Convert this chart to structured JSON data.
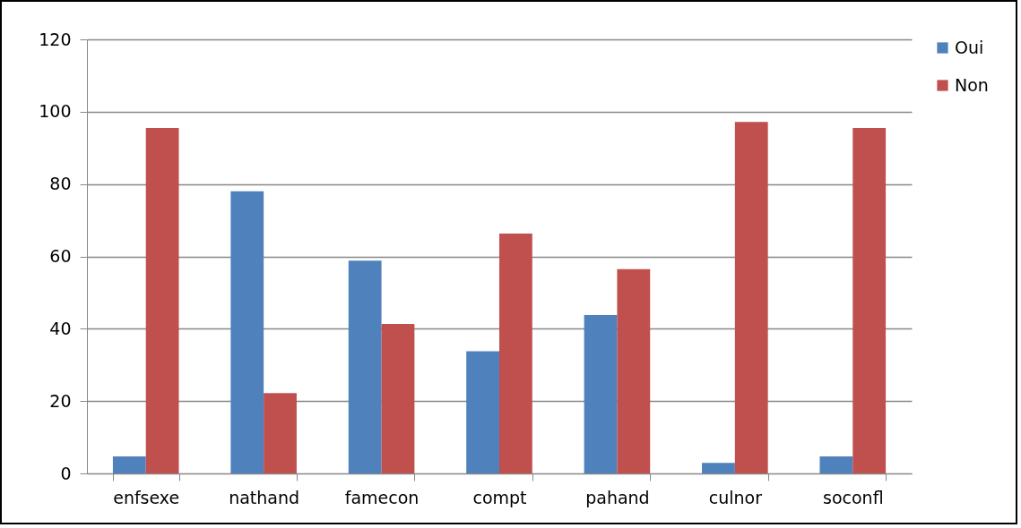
{
  "chart_data": {
    "type": "bar",
    "categories": [
      "enfsexe",
      "nathand",
      "famecon",
      "compt",
      "pahand",
      "culnor",
      "soconfl"
    ],
    "series": [
      {
        "name": "Oui",
        "color": "#4f81bd",
        "values": [
          4.7,
          78,
          58.8,
          33.8,
          43.8,
          2.9,
          4.7
        ]
      },
      {
        "name": "Non",
        "color": "#c0504d",
        "values": [
          95.5,
          22.2,
          41.3,
          66.3,
          56.5,
          97.2,
          95.5
        ]
      }
    ],
    "ylim": [
      0,
      120
    ],
    "yticks": [
      0,
      20,
      40,
      60,
      80,
      100,
      120
    ],
    "grid": "y",
    "legend": "right"
  }
}
